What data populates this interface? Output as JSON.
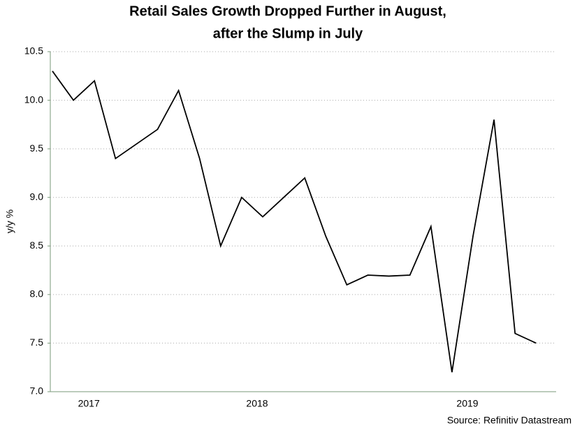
{
  "chart_data": {
    "type": "line",
    "title": "Retail Sales Growth Dropped Further in August,",
    "subtitle": "after the Slump in July",
    "y_label": "y/y %",
    "source": "Source: Refinitiv Datastream",
    "categories": [
      null,
      null,
      "2017",
      null,
      null,
      null,
      null,
      null,
      null,
      null,
      "2018",
      null,
      null,
      null,
      null,
      null,
      null,
      null,
      null,
      null,
      "2019",
      null,
      null,
      null
    ],
    "series": [
      {
        "name": "Retail Sales",
        "color": "#000000",
        "values": [
          10.3,
          10.0,
          10.2,
          9.4,
          9.55,
          9.7,
          10.1,
          9.4,
          8.5,
          9.0,
          8.8,
          9.0,
          9.2,
          8.6,
          8.1,
          8.2,
          8.19,
          8.2,
          8.7,
          7.2,
          8.6,
          9.8,
          7.6,
          7.5
        ]
      }
    ],
    "ylim": [
      7.0,
      10.5
    ],
    "yticks": [
      {
        "value": 7.0,
        "label": "7.0"
      },
      {
        "value": 7.5,
        "label": "7.5"
      },
      {
        "value": 8.0,
        "label": "8.0"
      },
      {
        "value": 8.5,
        "label": "8.5"
      },
      {
        "value": 9.0,
        "label": "9.0"
      },
      {
        "value": 9.5,
        "label": "9.5"
      },
      {
        "value": 10.0,
        "label": "10.0"
      },
      {
        "value": 10.5,
        "label": "10.5"
      }
    ],
    "grid": true
  }
}
